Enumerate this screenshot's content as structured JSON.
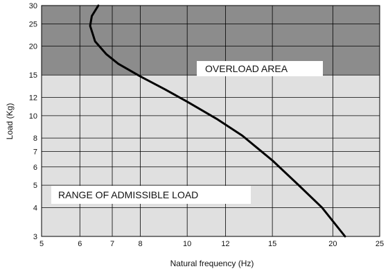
{
  "chart_data": {
    "type": "line",
    "title": "",
    "xlabel": "Natural frequency (Hz)",
    "ylabel": "Load (Kg)",
    "x_scale": "log",
    "y_scale": "log",
    "xlim": [
      5,
      25
    ],
    "ylim": [
      3,
      30
    ],
    "x_ticks": [
      5,
      6,
      7,
      8,
      10,
      12,
      15,
      20,
      25
    ],
    "y_ticks": [
      3,
      4,
      5,
      6,
      7,
      8,
      10,
      12,
      15,
      20,
      25,
      30
    ],
    "grid": true,
    "regions": [
      {
        "label": "OVERLOAD AREA",
        "y_from": 15,
        "y_to": 30,
        "color": "#8c8c8c"
      },
      {
        "label": "RANGE OF ADMISSIBLE LOAD",
        "y_from": 3,
        "y_to": 15,
        "color": "#e0e0e0"
      }
    ],
    "series": [
      {
        "color": "#000000",
        "x": [
          6.55,
          6.35,
          6.3,
          6.45,
          6.8,
          7.2,
          8.0,
          9.0,
          10.0,
          11.5,
          13.0,
          15.0,
          17.0,
          19.0,
          21.2
        ],
        "y": [
          30,
          27,
          24.5,
          21,
          18.5,
          16.8,
          14.8,
          13.0,
          11.5,
          9.7,
          8.2,
          6.4,
          5.0,
          4.0,
          3.0
        ]
      }
    ]
  }
}
